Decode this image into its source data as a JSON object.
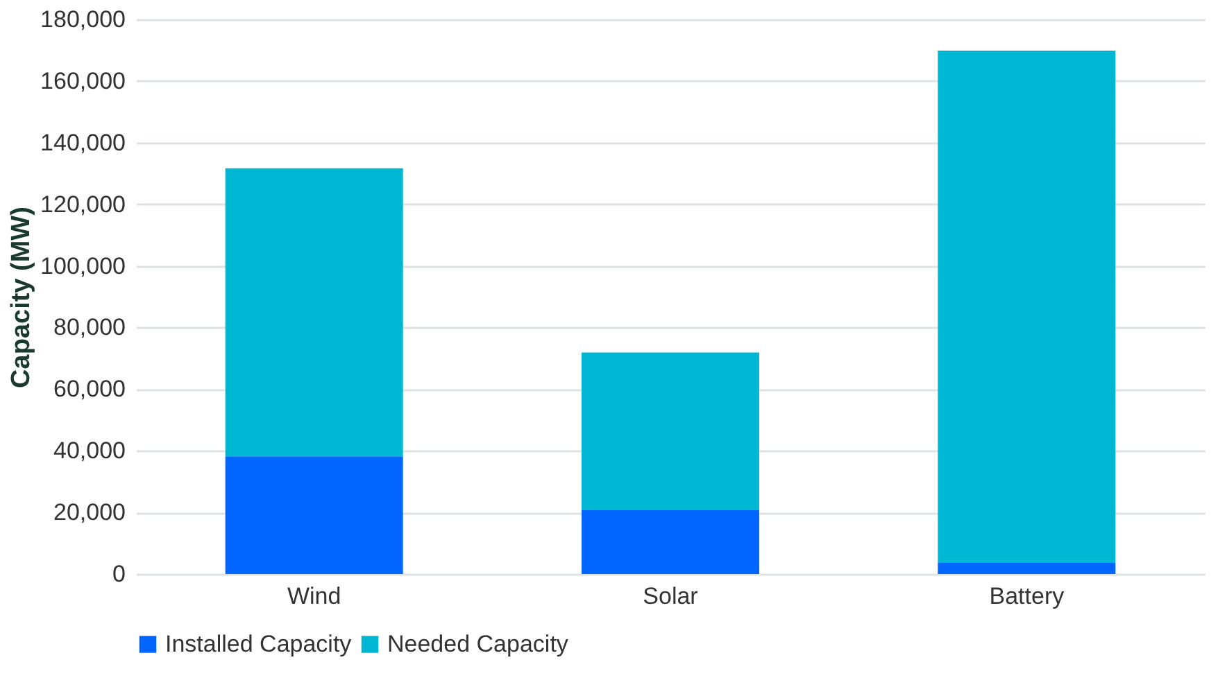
{
  "chart_data": {
    "type": "bar",
    "stacked": true,
    "ylabel": "Capacity (MW)",
    "categories": [
      "Wind",
      "Solar",
      "Battery"
    ],
    "series": [
      {
        "name": "Installed Capacity",
        "color": "#0066ff",
        "values": [
          38200,
          20700,
          3600
        ]
      },
      {
        "name": "Needed Capacity",
        "color": "#00b7d3",
        "values": [
          93500,
          51200,
          166300
        ]
      }
    ],
    "ylim": [
      0,
      180000
    ],
    "yticks": [
      0,
      {
        "value": 20000,
        "label": "20,000"
      },
      {
        "value": 40000,
        "label": "40,000"
      },
      {
        "value": 60000,
        "label": "60,000"
      },
      {
        "value": 80000,
        "label": "80,000"
      },
      {
        "value": 100000,
        "label": "100,000"
      },
      {
        "value": 120000,
        "label": "120,000"
      },
      {
        "value": 140000,
        "label": "140,000"
      },
      {
        "value": 160000,
        "label": "160,000"
      },
      {
        "value": 180000,
        "label": "180,000"
      }
    ],
    "grid": "y",
    "legend": "bottom"
  }
}
